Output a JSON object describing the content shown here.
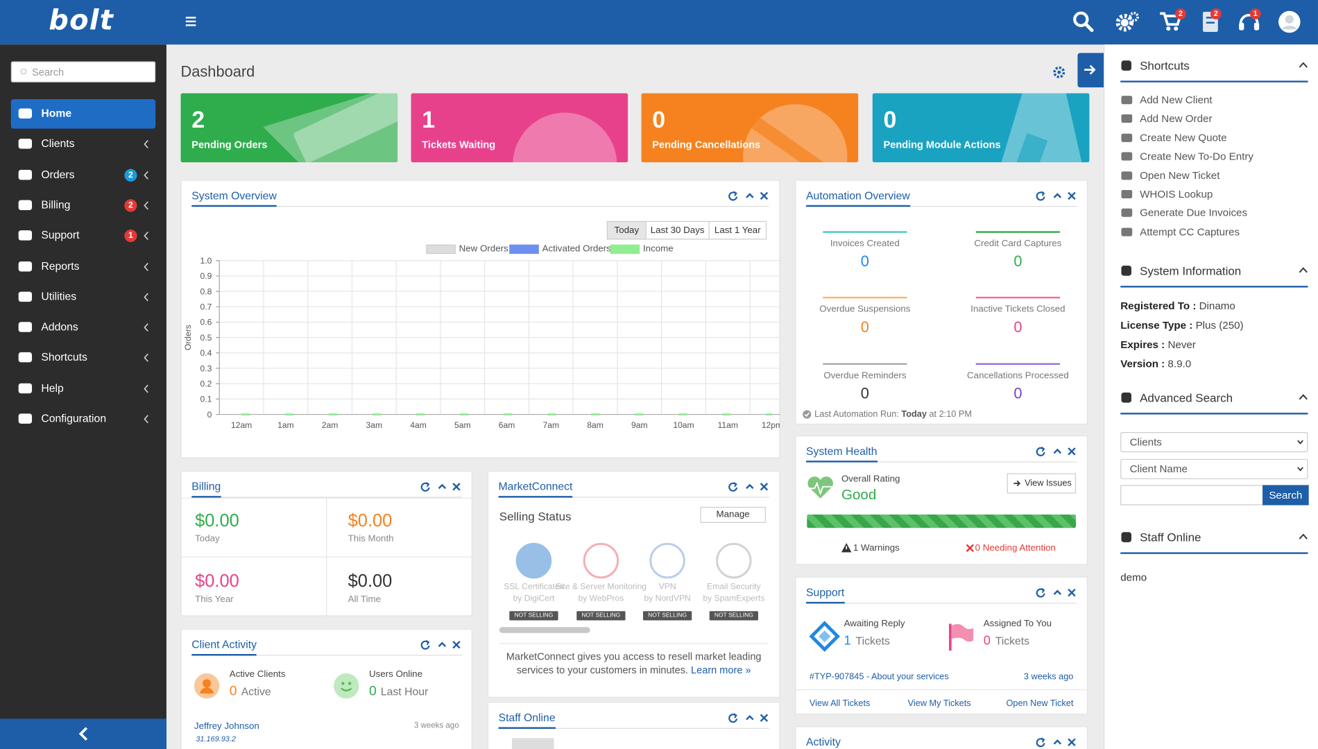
{
  "header": {
    "logo": "bolt",
    "badges": {
      "cart": "2",
      "billing": "2",
      "support": "1"
    }
  },
  "sidebar": {
    "search_placeholder": "Search",
    "items": [
      {
        "label": "Home",
        "active": true
      },
      {
        "label": "Clients"
      },
      {
        "label": "Orders",
        "badge": "2",
        "badge_color": "#1d9bd8"
      },
      {
        "label": "Billing",
        "badge": "2",
        "badge_color": "#e53935"
      },
      {
        "label": "Support",
        "badge": "1",
        "badge_color": "#e53935"
      },
      {
        "label": "Reports"
      },
      {
        "label": "Utilities"
      },
      {
        "label": "Addons"
      },
      {
        "label": "Shortcuts"
      },
      {
        "label": "Help"
      },
      {
        "label": "Configuration"
      }
    ]
  },
  "page_title": "Dashboard",
  "cards": [
    {
      "value": "2",
      "label": "Pending Orders",
      "color": "#2fad4c"
    },
    {
      "value": "1",
      "label": "Tickets Waiting",
      "color": "#e8418c"
    },
    {
      "value": "0",
      "label": "Pending Cancellations",
      "color": "#f5821f"
    },
    {
      "value": "0",
      "label": "Pending Module Actions",
      "color": "#1aa3c0"
    }
  ],
  "system_overview": {
    "title": "System Overview",
    "ranges": [
      "Today",
      "Last 30 Days",
      "Last 1 Year"
    ],
    "chart": {
      "type": "line",
      "ylabel": "Orders",
      "categories": [
        "12am",
        "1am",
        "2am",
        "3am",
        "4am",
        "5am",
        "6am",
        "7am",
        "8am",
        "9am",
        "10am",
        "11am",
        "12pm"
      ],
      "ylim": [
        0,
        1
      ],
      "yticks": [
        0,
        0.1,
        0.2,
        0.3,
        0.4,
        0.5,
        0.6,
        0.7,
        0.8,
        0.9,
        {
          "value": 1,
          "label": "1.0"
        }
      ],
      "grid": true,
      "series": [
        {
          "name": "New Orders",
          "color": "#dddddd",
          "values": [
            0,
            0,
            0,
            0,
            0,
            0,
            0,
            0,
            0,
            0,
            0,
            0,
            0
          ]
        },
        {
          "name": "Activated Orders",
          "color": "#6f8ff0",
          "values": [
            0,
            0,
            0,
            0,
            0,
            0,
            0,
            0,
            0,
            0,
            0,
            0,
            0
          ]
        },
        {
          "name": "Income",
          "color": "#90ee90",
          "values": [
            0,
            0,
            0,
            0,
            0,
            0,
            0,
            0,
            0,
            0,
            0,
            0,
            0
          ]
        }
      ]
    }
  },
  "automation": {
    "title": "Automation Overview",
    "items": [
      {
        "label": "Invoices Created",
        "value": "0",
        "color": "#1e88e5",
        "line": "#48c9c0"
      },
      {
        "label": "Credit Card Captures",
        "value": "0",
        "color": "#2fad4c",
        "line": "#2fad4c"
      },
      {
        "label": "Overdue Suspensions",
        "value": "0",
        "color": "#f5821f",
        "line": "#f7b76a"
      },
      {
        "label": "Inactive Tickets Closed",
        "value": "0",
        "color": "#e8418c",
        "line": "#ee6b9c"
      },
      {
        "label": "Overdue Reminders",
        "value": "0",
        "color": "#333333",
        "line": "#aaaaaa"
      },
      {
        "label": "Cancellations Processed",
        "value": "0",
        "color": "#7b3fbf",
        "line": "#9b6fd6"
      }
    ],
    "last_run_prefix": "Last Automation Run:",
    "last_run": "Today",
    "last_run_time": "at 2:10 PM"
  },
  "billing": {
    "title": "Billing",
    "items": [
      {
        "amount": "$0.00",
        "label": "Today",
        "color": "#2fad4c"
      },
      {
        "amount": "$0.00",
        "label": "This Month",
        "color": "#f5821f"
      },
      {
        "amount": "$0.00",
        "label": "This Year",
        "color": "#e8418c"
      },
      {
        "amount": "$0.00",
        "label": "All Time",
        "color": "#333333"
      }
    ]
  },
  "marketconnect": {
    "title": "MarketConnect",
    "status": "Selling Status",
    "manage": "Manage",
    "products": [
      {
        "name": "SSL Certificates",
        "by": "by DigiCert",
        "status": "NOT SELLING",
        "color": "#7fb0e0"
      },
      {
        "name": "Site & Server Monitoring",
        "by": "by WebPros",
        "status": "NOT SELLING",
        "color": "#f29aa6"
      },
      {
        "name": "VPN",
        "by": "by NordVPN",
        "status": "NOT SELLING",
        "color": "#a9c2e6"
      },
      {
        "name": "Email Security",
        "by": "by SpamExperts",
        "status": "NOT SELLING",
        "color": "#c8c8c8"
      }
    ],
    "description": "MarketConnect gives you access to resell market leading services to your customers in minutes.",
    "link": "Learn more »"
  },
  "system_health": {
    "title": "System Health",
    "rating_label": "Overall Rating",
    "rating": "Good",
    "button": "View Issues",
    "warnings": "1 Warnings",
    "attention": "0 Needing Attention"
  },
  "support": {
    "title": "Support",
    "awaiting_label": "Awaiting Reply",
    "awaiting": "1",
    "awaiting_unit": "Tickets",
    "assigned_label": "Assigned To You",
    "assigned": "0",
    "assigned_unit": "Tickets",
    "ticket": "#TYP-907845 - About your services",
    "ticket_time": "3 weeks ago",
    "links": [
      "View All Tickets",
      "View My Tickets",
      "Open New Ticket"
    ]
  },
  "client_activity": {
    "title": "Client Activity",
    "active_label": "Active Clients",
    "active": "0",
    "active_unit": "Active",
    "online_label": "Users Online",
    "online": "0",
    "online_unit": "Last Hour",
    "client_name": "Jeffrey Johnson",
    "client_ip": "31.169.93.2",
    "client_time": "3 weeks ago"
  },
  "staff_online_panel": {
    "title": "Staff Online"
  },
  "activity": {
    "title": "Activity"
  },
  "right_panel": {
    "shortcuts_title": "Shortcuts",
    "shortcuts": [
      "Add New Client",
      "Add New Order",
      "Create New Quote",
      "Create New To-Do Entry",
      "Open New Ticket",
      "WHOIS Lookup",
      "Generate Due Invoices",
      "Attempt CC Captures"
    ],
    "sysinfo_title": "System Information",
    "sysinfo": [
      {
        "label": "Registered To :",
        "value": "Dinamo"
      },
      {
        "label": "License Type :",
        "value": "Plus (250)"
      },
      {
        "label": "Expires :",
        "value": "Never"
      },
      {
        "label": "Version :",
        "value": "8.9.0"
      }
    ],
    "search_title": "Advanced Search",
    "selects": [
      "Clients",
      "Client Name"
    ],
    "search_button": "Search",
    "staff_title": "Staff Online",
    "staff": [
      "demo"
    ]
  }
}
